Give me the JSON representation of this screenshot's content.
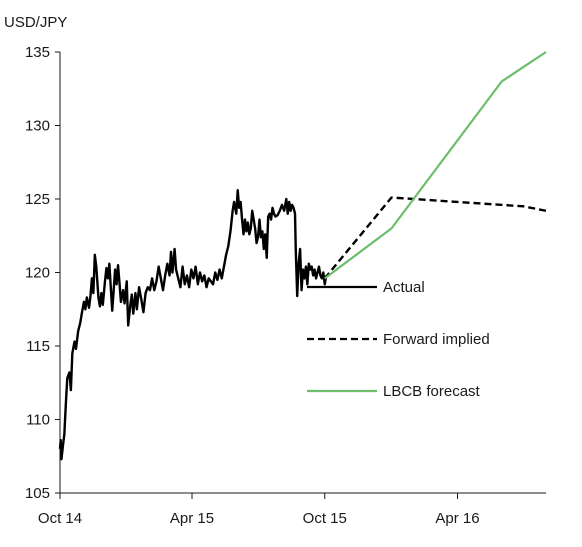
{
  "chart_data": {
    "type": "line",
    "title": "",
    "ylabel": "USD/JPY",
    "xlabel": "",
    "ylim": [
      105,
      135
    ],
    "xlim": [
      "2014-10-01",
      "2016-08-01"
    ],
    "yticks": [
      105,
      110,
      115,
      120,
      125,
      130,
      135
    ],
    "xticks": [
      {
        "label": "Oct 14",
        "date": "2014-10-01"
      },
      {
        "label": "Apr 15",
        "date": "2015-04-01"
      },
      {
        "label": "Oct 15",
        "date": "2015-10-01"
      },
      {
        "label": "Apr 16",
        "date": "2016-04-01"
      }
    ],
    "grid": false,
    "legend": "center-right",
    "series": [
      {
        "name": "Actual",
        "style": "solid",
        "color": "#000000",
        "points": [
          [
            "2014-10-01",
            108.0
          ],
          [
            "2014-10-02",
            108.6
          ],
          [
            "2014-10-03",
            107.3
          ],
          [
            "2014-10-05",
            108.2
          ],
          [
            "2014-10-07",
            109.0
          ],
          [
            "2014-10-09",
            111.0
          ],
          [
            "2014-10-11",
            112.8
          ],
          [
            "2014-10-14",
            113.2
          ],
          [
            "2014-10-16",
            112.0
          ],
          [
            "2014-10-18",
            114.5
          ],
          [
            "2014-10-21",
            115.3
          ],
          [
            "2014-10-23",
            114.8
          ],
          [
            "2014-10-26",
            116.0
          ],
          [
            "2014-10-29",
            116.6
          ],
          [
            "2014-10-31",
            117.2
          ],
          [
            "2014-11-03",
            118.0
          ],
          [
            "2014-11-05",
            117.5
          ],
          [
            "2014-11-07",
            118.3
          ],
          [
            "2014-11-10",
            117.6
          ],
          [
            "2014-11-12",
            118.4
          ],
          [
            "2014-11-14",
            119.6
          ],
          [
            "2014-11-16",
            118.6
          ],
          [
            "2014-11-18",
            121.2
          ],
          [
            "2014-11-20",
            120.4
          ],
          [
            "2014-11-23",
            118.3
          ],
          [
            "2014-11-25",
            117.7
          ],
          [
            "2014-11-27",
            118.6
          ],
          [
            "2014-11-29",
            117.8
          ],
          [
            "2014-12-02",
            119.4
          ],
          [
            "2014-12-04",
            120.3
          ],
          [
            "2014-12-06",
            119.6
          ],
          [
            "2014-12-08",
            120.6
          ],
          [
            "2014-12-10",
            119.0
          ],
          [
            "2014-12-12",
            117.4
          ],
          [
            "2014-12-14",
            118.8
          ],
          [
            "2014-12-16",
            120.2
          ],
          [
            "2014-12-18",
            119.2
          ],
          [
            "2014-12-20",
            120.5
          ],
          [
            "2014-12-22",
            119.3
          ],
          [
            "2014-12-24",
            118.0
          ],
          [
            "2014-12-27",
            118.8
          ],
          [
            "2014-12-29",
            117.9
          ],
          [
            "2015-01-01",
            119.4
          ],
          [
            "2015-01-03",
            116.4
          ],
          [
            "2015-01-06",
            117.8
          ],
          [
            "2015-01-08",
            118.5
          ],
          [
            "2015-01-10",
            117.2
          ],
          [
            "2015-01-13",
            118.6
          ],
          [
            "2015-01-15",
            117.5
          ],
          [
            "2015-01-18",
            119.0
          ],
          [
            "2015-01-21",
            118.2
          ],
          [
            "2015-01-24",
            117.3
          ],
          [
            "2015-01-27",
            118.6
          ],
          [
            "2015-01-30",
            119.0
          ],
          [
            "2015-02-02",
            118.8
          ],
          [
            "2015-02-05",
            119.6
          ],
          [
            "2015-02-08",
            118.8
          ],
          [
            "2015-02-11",
            119.4
          ],
          [
            "2015-02-14",
            120.4
          ],
          [
            "2015-02-17",
            119.6
          ],
          [
            "2015-02-20",
            118.8
          ],
          [
            "2015-02-23",
            119.8
          ],
          [
            "2015-02-26",
            120.6
          ],
          [
            "2015-03-01",
            119.8
          ],
          [
            "2015-03-03",
            121.4
          ],
          [
            "2015-03-05",
            120.0
          ],
          [
            "2015-03-08",
            121.6
          ],
          [
            "2015-03-10",
            120.2
          ],
          [
            "2015-03-13",
            119.6
          ],
          [
            "2015-03-16",
            119.0
          ],
          [
            "2015-03-19",
            120.4
          ],
          [
            "2015-03-22",
            119.2
          ],
          [
            "2015-03-25",
            119.8
          ],
          [
            "2015-03-28",
            119.0
          ],
          [
            "2015-03-31",
            120.2
          ],
          [
            "2015-04-03",
            119.6
          ],
          [
            "2015-04-06",
            120.4
          ],
          [
            "2015-04-09",
            119.2
          ],
          [
            "2015-04-12",
            120.0
          ],
          [
            "2015-04-15",
            119.4
          ],
          [
            "2015-04-18",
            119.8
          ],
          [
            "2015-04-21",
            119.0
          ],
          [
            "2015-04-24",
            119.6
          ],
          [
            "2015-04-27",
            119.4
          ],
          [
            "2015-04-30",
            119.2
          ],
          [
            "2015-05-03",
            120.0
          ],
          [
            "2015-05-06",
            119.5
          ],
          [
            "2015-05-09",
            120.2
          ],
          [
            "2015-05-12",
            119.6
          ],
          [
            "2015-05-15",
            120.4
          ],
          [
            "2015-05-18",
            121.2
          ],
          [
            "2015-05-21",
            121.8
          ],
          [
            "2015-05-24",
            122.8
          ],
          [
            "2015-05-27",
            124.2
          ],
          [
            "2015-05-29",
            124.8
          ],
          [
            "2015-06-01",
            124.0
          ],
          [
            "2015-06-03",
            125.6
          ],
          [
            "2015-06-05",
            124.4
          ],
          [
            "2015-06-07",
            124.8
          ],
          [
            "2015-06-09",
            123.6
          ],
          [
            "2015-06-11",
            122.6
          ],
          [
            "2015-06-13",
            123.6
          ],
          [
            "2015-06-15",
            122.8
          ],
          [
            "2015-06-17",
            123.4
          ],
          [
            "2015-06-19",
            122.6
          ],
          [
            "2015-06-21",
            123.0
          ],
          [
            "2015-06-23",
            124.2
          ],
          [
            "2015-06-25",
            123.6
          ],
          [
            "2015-06-27",
            123.0
          ],
          [
            "2015-06-29",
            122.0
          ],
          [
            "2015-07-01",
            122.4
          ],
          [
            "2015-07-03",
            123.6
          ],
          [
            "2015-07-05",
            122.4
          ],
          [
            "2015-07-07",
            122.8
          ],
          [
            "2015-07-09",
            121.6
          ],
          [
            "2015-07-11",
            122.6
          ],
          [
            "2015-07-13",
            121.0
          ],
          [
            "2015-07-15",
            123.8
          ],
          [
            "2015-07-17",
            124.0
          ],
          [
            "2015-07-19",
            123.6
          ],
          [
            "2015-07-21",
            124.4
          ],
          [
            "2015-07-23",
            124.0
          ],
          [
            "2015-07-25",
            123.8
          ],
          [
            "2015-07-28",
            123.9
          ],
          [
            "2015-07-31",
            124.2
          ],
          [
            "2015-08-03",
            124.6
          ],
          [
            "2015-08-06",
            124.2
          ],
          [
            "2015-08-09",
            125.0
          ],
          [
            "2015-08-11",
            124.0
          ],
          [
            "2015-08-13",
            124.8
          ],
          [
            "2015-08-15",
            124.2
          ],
          [
            "2015-08-17",
            124.6
          ],
          [
            "2015-08-19",
            124.4
          ],
          [
            "2015-08-21",
            124.0
          ],
          [
            "2015-08-22",
            121.6
          ],
          [
            "2015-08-24",
            118.4
          ],
          [
            "2015-08-26",
            120.6
          ],
          [
            "2015-08-28",
            121.6
          ],
          [
            "2015-08-30",
            118.8
          ],
          [
            "2015-09-01",
            120.2
          ],
          [
            "2015-09-03",
            119.6
          ],
          [
            "2015-09-05",
            120.4
          ],
          [
            "2015-09-07",
            119.2
          ],
          [
            "2015-09-09",
            120.6
          ],
          [
            "2015-09-11",
            120.2
          ],
          [
            "2015-09-13",
            120.4
          ],
          [
            "2015-09-15",
            119.8
          ],
          [
            "2015-09-17",
            120.2
          ],
          [
            "2015-09-19",
            119.6
          ],
          [
            "2015-09-21",
            120.0
          ],
          [
            "2015-09-23",
            120.4
          ],
          [
            "2015-09-25",
            119.8
          ],
          [
            "2015-09-27",
            119.6
          ],
          [
            "2015-09-29",
            120.0
          ],
          [
            "2015-10-01",
            119.2
          ],
          [
            "2015-10-03",
            119.8
          ]
        ]
      },
      {
        "name": "Forward implied",
        "style": "dashed",
        "color": "#000000",
        "points": [
          [
            "2015-10-01",
            119.6
          ],
          [
            "2016-01-01",
            125.1
          ],
          [
            "2016-04-01",
            124.8
          ],
          [
            "2016-07-01",
            124.5
          ],
          [
            "2016-08-01",
            124.2
          ]
        ]
      },
      {
        "name": "LBCB forecast",
        "style": "solid",
        "color": "#6cbd6c",
        "points": [
          [
            "2015-10-01",
            119.6
          ],
          [
            "2016-01-01",
            123.0
          ],
          [
            "2016-06-01",
            133.0
          ],
          [
            "2016-08-01",
            135.0
          ]
        ]
      }
    ]
  }
}
